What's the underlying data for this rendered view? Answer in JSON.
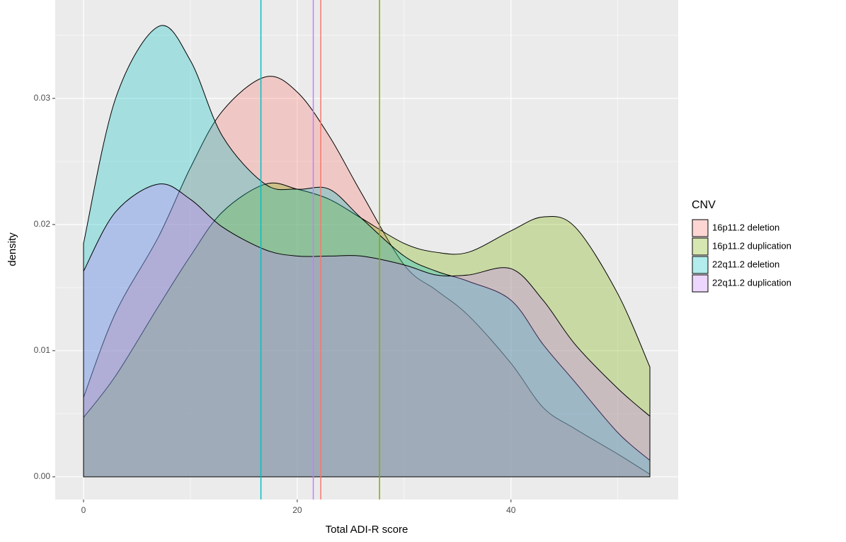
{
  "chart_data": {
    "type": "density",
    "x_label": "Total ADI-R score",
    "y_label": "density",
    "legend_title": "CNV",
    "x": [
      0,
      3,
      7,
      10,
      13,
      17,
      20,
      23,
      26,
      30,
      33,
      36,
      40,
      43,
      46,
      50,
      53
    ],
    "series": [
      {
        "name": "16p11.2 deletion",
        "color": "#F8766D",
        "mean": 22.2,
        "values": [
          0.0063,
          0.013,
          0.019,
          0.0245,
          0.029,
          0.0317,
          0.0305,
          0.027,
          0.0225,
          0.0168,
          0.0148,
          0.0128,
          0.009,
          0.0055,
          0.0038,
          0.0018,
          0.0002
        ]
      },
      {
        "name": "16p11.2 duplication",
        "color": "#7CAE00",
        "mean": 27.7,
        "values": [
          0.0047,
          0.008,
          0.0135,
          0.0175,
          0.021,
          0.0232,
          0.0228,
          0.022,
          0.0205,
          0.0185,
          0.0178,
          0.0178,
          0.0195,
          0.0206,
          0.0198,
          0.0145,
          0.0087
        ]
      },
      {
        "name": "22q11.2 deletion",
        "color": "#00BFC4",
        "mean": 16.6,
        "values": [
          0.0185,
          0.03,
          0.0357,
          0.033,
          0.027,
          0.0232,
          0.0228,
          0.0228,
          0.0205,
          0.0175,
          0.0163,
          0.0155,
          0.014,
          0.0105,
          0.0075,
          0.0035,
          0.0013
        ]
      },
      {
        "name": "22q11.2 duplication",
        "color": "#C77CFF",
        "mean": 21.5,
        "values": [
          0.0163,
          0.021,
          0.0232,
          0.022,
          0.0198,
          0.018,
          0.0175,
          0.0175,
          0.0175,
          0.0168,
          0.016,
          0.016,
          0.0165,
          0.014,
          0.0105,
          0.007,
          0.0048
        ]
      }
    ],
    "fill_opacity": 0.3,
    "xlim": [
      -2.65,
      55.65
    ],
    "xticks": [
      0,
      20,
      40
    ],
    "x_minor_ticks": [
      10,
      30,
      50
    ],
    "ylim": [
      -0.0018,
      0.0378
    ],
    "yticks": [
      {
        "value": 0,
        "label": "0.00"
      },
      0.01,
      0.02,
      0.03
    ],
    "y_minor_ticks": [
      0.005,
      0.015,
      0.025,
      0.035
    ],
    "grid": true,
    "legend": "right"
  }
}
